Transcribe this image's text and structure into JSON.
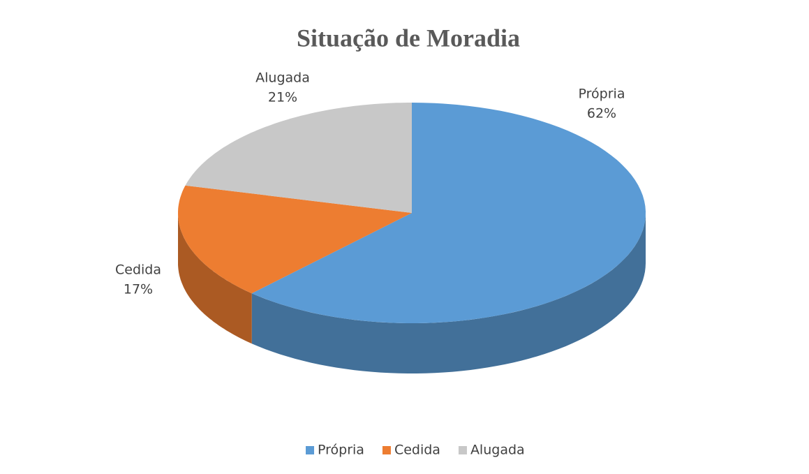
{
  "chart_data": {
    "type": "pie",
    "title": "Situação de Moradia",
    "categories": [
      "Própria",
      "Cedida",
      "Alugada"
    ],
    "values": [
      62,
      17,
      21
    ],
    "value_labels": [
      "62%",
      "17%",
      "21%"
    ],
    "colors": [
      "#5b9bd5",
      "#ed7d31",
      "#c8c8c8"
    ],
    "legend": "bottom"
  }
}
